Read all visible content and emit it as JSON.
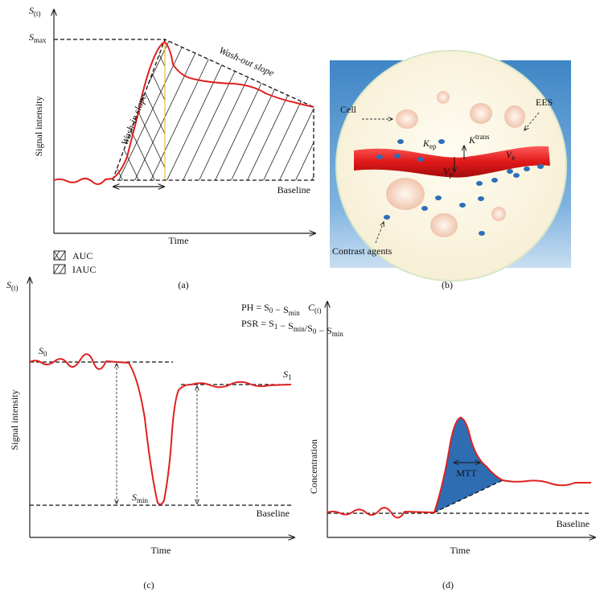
{
  "panel_a": {
    "y_symbol": [
      "S",
      {
        "sub": "(t)"
      }
    ],
    "s_max": [
      "S",
      {
        "sub": "max"
      }
    ],
    "y_label": "Signal intensity",
    "wash_in": "Wash-in slope",
    "wash_out": "Wash-out slope",
    "baseline": "Baseline",
    "x_label": "Time",
    "legend": [
      "AUC",
      "IAUC"
    ],
    "caption": "(a)"
  },
  "panel_b": {
    "cell": "Cell",
    "ees": "EES",
    "k_ep": [
      "K",
      {
        "sub": "ep"
      }
    ],
    "k_trans": [
      "K",
      {
        "sup": "trans"
      }
    ],
    "v_p": [
      "V",
      {
        "sub": "p"
      }
    ],
    "v_e": [
      "V",
      {
        "sub": "e"
      }
    ],
    "contrast": "Contrast agents",
    "caption": "(b)"
  },
  "panel_c": {
    "y_symbol": [
      "S",
      {
        "sub": "(t)"
      }
    ],
    "ph_formula": [
      "PH = ",
      "S",
      {
        "sub": "0"
      },
      " − ",
      "S",
      {
        "sub": "min"
      }
    ],
    "psr_formula": [
      "PSR = ",
      "S",
      {
        "sub": "1"
      },
      " − ",
      "S",
      {
        "sub": "min"
      },
      "/",
      "S",
      {
        "sub": "0"
      },
      " − ",
      "S",
      {
        "sub": "min"
      }
    ],
    "s0": [
      "S",
      {
        "sub": "0"
      }
    ],
    "s1": [
      "S",
      {
        "sub": "1"
      }
    ],
    "s_min": [
      "S",
      {
        "sub": "min"
      }
    ],
    "y_label": "Signal intensity",
    "baseline": "Baseline",
    "x_label": "Time",
    "caption": "(c)"
  },
  "panel_d": {
    "y_symbol": [
      "C",
      {
        "sub": "(t)"
      }
    ],
    "y_label": "Concentration",
    "mtt": "MTT",
    "baseline": "Baseline",
    "x_label": "Time",
    "caption": "(d)"
  }
}
